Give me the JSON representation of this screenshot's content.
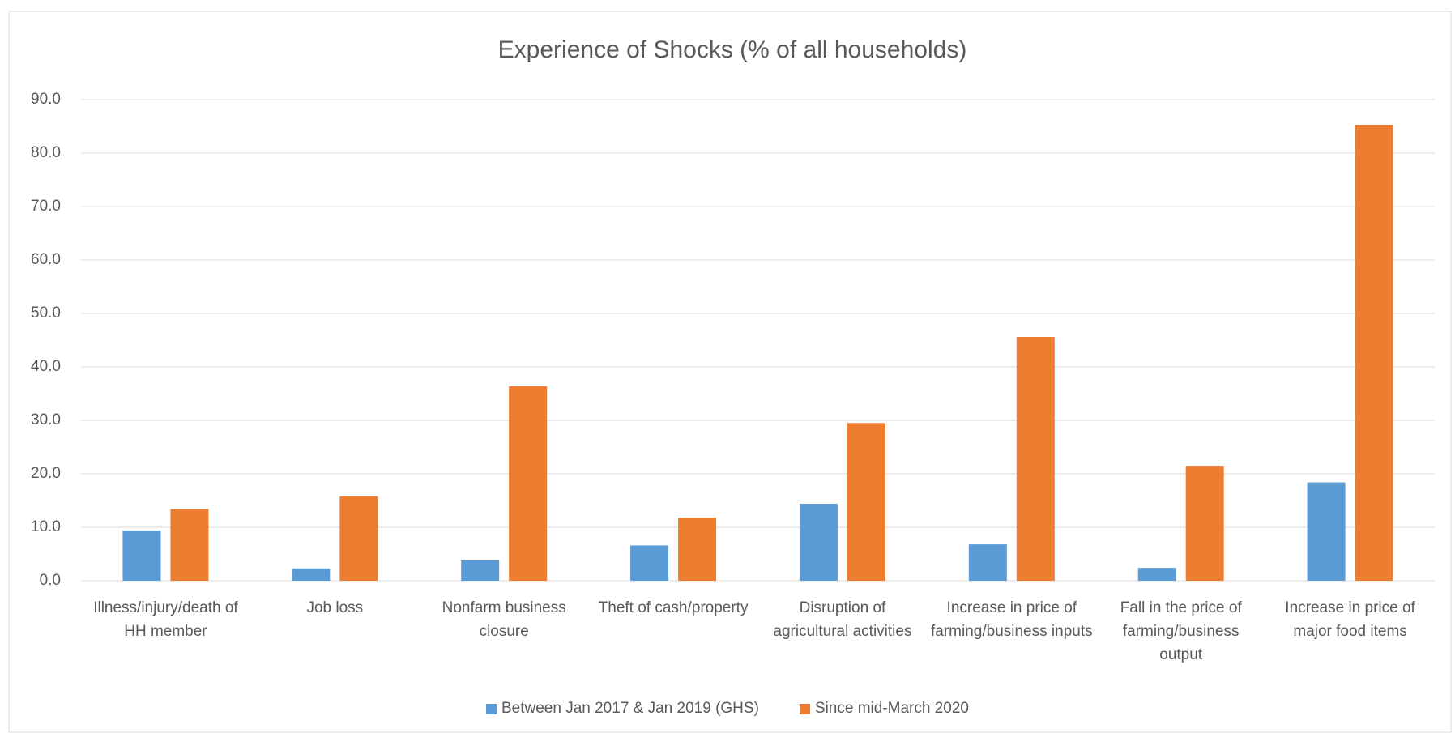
{
  "chart_data": {
    "type": "bar",
    "title": "Experience of Shocks (% of all households)",
    "categories": [
      "Illness/injury/death of HH member",
      "Job loss",
      "Nonfarm business closure",
      "Theft of cash/property",
      "Disruption of agricultural activities",
      "Increase in price of farming/business inputs",
      "Fall in the price of farming/business output",
      "Increase in price of major food items"
    ],
    "series": [
      {
        "name": "Between Jan 2017 & Jan 2019 (GHS)",
        "color": "#5b9bd5",
        "values": [
          9.4,
          2.3,
          3.8,
          6.6,
          14.4,
          6.8,
          2.4,
          18.4
        ]
      },
      {
        "name": "Since mid-March 2020",
        "color": "#ed7d31",
        "values": [
          13.4,
          15.8,
          36.4,
          11.8,
          29.5,
          45.6,
          21.5,
          85.3
        ]
      }
    ],
    "ylim": [
      0,
      90
    ],
    "yticks": [
      {
        "value": 0,
        "label": "0.0"
      },
      {
        "value": 10,
        "label": "10.0"
      },
      {
        "value": 20,
        "label": "20.0"
      },
      {
        "value": 30,
        "label": "30.0"
      },
      {
        "value": 40,
        "label": "40.0"
      },
      {
        "value": 50,
        "label": "50.0"
      },
      {
        "value": 60,
        "label": "60.0"
      },
      {
        "value": 70,
        "label": "70.0"
      },
      {
        "value": 80,
        "label": "80.0"
      },
      {
        "value": 90,
        "label": "90.0"
      }
    ],
    "grid": true,
    "legend": "bottom"
  }
}
